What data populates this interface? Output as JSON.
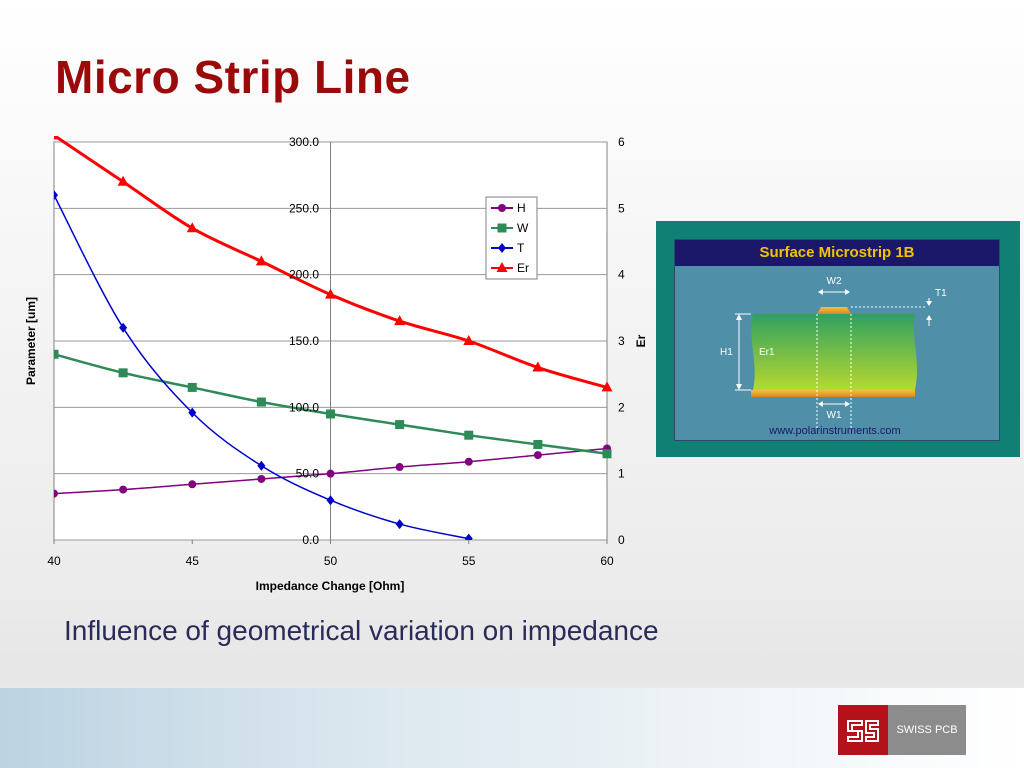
{
  "slide": {
    "title": "Micro Strip Line",
    "caption": "Influence of geometrical variation on impedance"
  },
  "figure": {
    "header": "Surface Microstrip 1B",
    "labels": {
      "w2": "W2",
      "t1": "T1",
      "h1": "H1",
      "er1": "Er1",
      "w1": "W1"
    },
    "url": "www.polarinstruments.com",
    "colors": {
      "frame": "#118074",
      "panel": "#4f8fa8",
      "header_bg": "#1c1869",
      "header_text": "#f2c200",
      "dielectric": "#8fc830",
      "copper": "#e8a020"
    }
  },
  "logo": {
    "mark": "gs",
    "text": "SWISS PCB",
    "colors": {
      "mark": "#b4121b",
      "text_bg": "#8c8c8c"
    }
  },
  "chart_data": {
    "type": "line",
    "x": [
      40,
      42.5,
      45,
      47.5,
      50,
      52.5,
      55,
      57.5,
      60
    ],
    "xlabel": "Impedance Change [Ohm]",
    "ylabel": "Parameter [um]",
    "y2label": "Er",
    "xlim": [
      40,
      60
    ],
    "ylim": [
      0,
      300
    ],
    "y2lim": [
      0,
      6
    ],
    "x_ticks": [
      "40",
      "45",
      "50",
      "55",
      "60"
    ],
    "y_ticks": [
      "0.0",
      "50.0",
      "100.0",
      "150.0",
      "200.0",
      "250.0",
      "300.0"
    ],
    "y2_ticks": [
      "0",
      "1",
      "2",
      "3",
      "4",
      "5",
      "6"
    ],
    "grid": true,
    "legend_position": "top-right",
    "series": [
      {
        "name": "H",
        "axis": "left",
        "color": "#800080",
        "marker": "circle",
        "x": [
          40,
          42.5,
          45,
          47.5,
          50,
          52.5,
          55,
          57.5,
          60
        ],
        "values": [
          35,
          38,
          42,
          46,
          50,
          55,
          59,
          64,
          69
        ]
      },
      {
        "name": "W",
        "axis": "left",
        "color": "#2e8b57",
        "marker": "square",
        "x": [
          40,
          42.5,
          45,
          47.5,
          50,
          52.5,
          55,
          57.5,
          60
        ],
        "values": [
          140,
          126,
          115,
          104,
          95,
          87,
          79,
          72,
          65
        ]
      },
      {
        "name": "T",
        "axis": "left",
        "color": "#0000cc",
        "marker": "diamond",
        "x": [
          40,
          42.5,
          45,
          47.5,
          50,
          52.5,
          55
        ],
        "values": [
          260,
          160,
          96,
          56,
          30,
          12,
          1
        ]
      },
      {
        "name": "Er",
        "axis": "right",
        "color": "#ff0000",
        "marker": "triangle",
        "x": [
          40,
          42.5,
          45,
          47.5,
          50,
          52.5,
          55,
          57.5,
          60
        ],
        "values": [
          6.1,
          5.4,
          4.7,
          4.2,
          3.7,
          3.3,
          3.0,
          2.6,
          2.3
        ]
      }
    ]
  }
}
